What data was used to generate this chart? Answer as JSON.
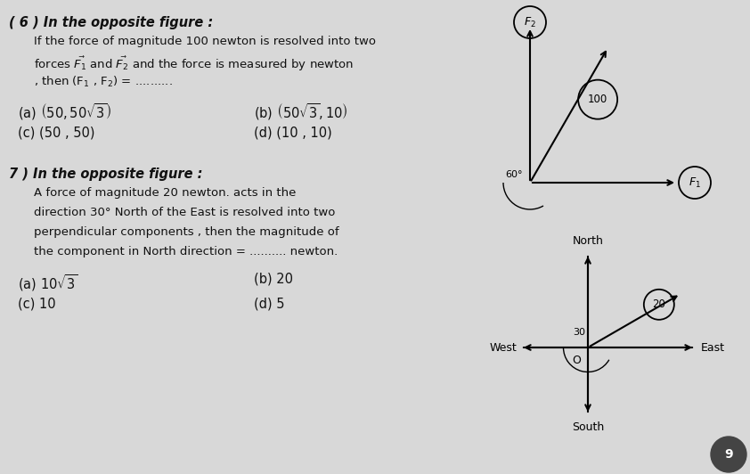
{
  "bg_color": "#d8d8d8",
  "text_color": "#111111",
  "title6": "( 6 ) In the opposite figure :",
  "text6_line1": "If the force of magnitude 100 newton is resolved into two",
  "text6_line2": "forces $\\vec{F_1}$ and $\\vec{F_2}$ and the force is measured by newton",
  "text6_line3": ", then (F$_1$ , F$_2$) = ..........",
  "ans6a": "(a) $\\left(50 , 50\\sqrt{3}\\right)$",
  "ans6b": "(b) $\\left(50\\sqrt{3} , 10\\right)$",
  "ans6c": "(c) (50 , 50)",
  "ans6d": "(d) (10 , 10)",
  "title7": "7 ) In the opposite figure :",
  "text7_line1": "A force of magnitude 20 newton. acts in the",
  "text7_line2": "direction 30° North of the East is resolved into two",
  "text7_line3": "perpendicular components , then the magnitude of",
  "text7_line4": "the component in North direction = .......... newton.",
  "ans7a": "(a) $10\\sqrt{3}$",
  "ans7b": "(b) 20",
  "ans7c": "(c) 10",
  "ans7d": "(d) 5",
  "page_num": "9"
}
